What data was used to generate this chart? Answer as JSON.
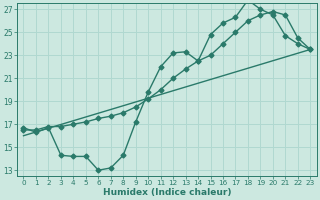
{
  "xlabel": "Humidex (Indice chaleur)",
  "xlim": [
    -0.5,
    23.5
  ],
  "ylim": [
    12.5,
    27.5
  ],
  "xticks": [
    0,
    1,
    2,
    3,
    4,
    5,
    6,
    7,
    8,
    9,
    10,
    11,
    12,
    13,
    14,
    15,
    16,
    17,
    18,
    19,
    20,
    21,
    22,
    23
  ],
  "yticks": [
    13,
    15,
    17,
    19,
    21,
    23,
    25,
    27
  ],
  "bg_color": "#cce8e0",
  "grid_color": "#b0d8d0",
  "line_color": "#2a7a6a",
  "line1_x": [
    0,
    1,
    2,
    3,
    4,
    5,
    6,
    7,
    8,
    9,
    10,
    11,
    12,
    13,
    14,
    15,
    16,
    17,
    18,
    19,
    20,
    21,
    22,
    23
  ],
  "line1_y": [
    16.7,
    16.3,
    16.7,
    14.3,
    14.2,
    14.2,
    13.0,
    13.2,
    14.3,
    17.2,
    19.8,
    22.0,
    23.2,
    23.3,
    22.5,
    24.8,
    25.8,
    26.3,
    27.8,
    27.0,
    26.5,
    24.7,
    24.0,
    23.5
  ],
  "line2_x": [
    0,
    1,
    2,
    3,
    4,
    5,
    6,
    7,
    8,
    9,
    10,
    11,
    12,
    13,
    14,
    15,
    16,
    17,
    18,
    19,
    20,
    21,
    22,
    23
  ],
  "line2_y": [
    16.5,
    16.5,
    16.8,
    16.8,
    17.0,
    17.2,
    17.5,
    17.7,
    18.0,
    18.5,
    19.2,
    20.0,
    21.0,
    21.8,
    22.5,
    23.0,
    24.0,
    25.0,
    26.0,
    26.5,
    26.8,
    26.5,
    24.5,
    23.5
  ],
  "line3_x": [
    0,
    23
  ],
  "line3_y": [
    16.0,
    23.5
  ],
  "marker": "D",
  "markersize": 2.5,
  "linewidth": 1.0
}
